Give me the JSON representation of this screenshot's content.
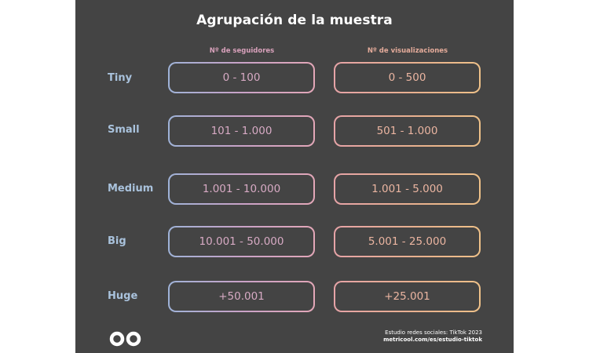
{
  "title": "Agrupación de la muestra",
  "columns": {
    "left": "Nº de seguidores",
    "right": "Nº de visualizaciones"
  },
  "rows": [
    {
      "label": "Tiny",
      "followers": "0 - 100",
      "views": "0 - 500"
    },
    {
      "label": "Small",
      "followers": "101 - 1.000",
      "views": "501 - 1.000"
    },
    {
      "label": "Medium",
      "followers": "1.001 - 10.000",
      "views": "1.001 - 5.000"
    },
    {
      "label": "Big",
      "followers": "10.001 - 50.000",
      "views": "5.001 - 25.000"
    },
    {
      "label": "Huge",
      "followers": "+50.001",
      "views": "+25.001"
    }
  ],
  "footer": {
    "source": "Estudio redes sociales: TikTok 2023",
    "url": "metricool.com/es/estudio-tiktok",
    "logo_icon": "metricool-infinity-logo-icon"
  },
  "colors": {
    "background": "#444444",
    "label_blue": "#a9c2dc",
    "followers_pink": "#d7aac4",
    "views_peach": "#ebb5a1"
  }
}
